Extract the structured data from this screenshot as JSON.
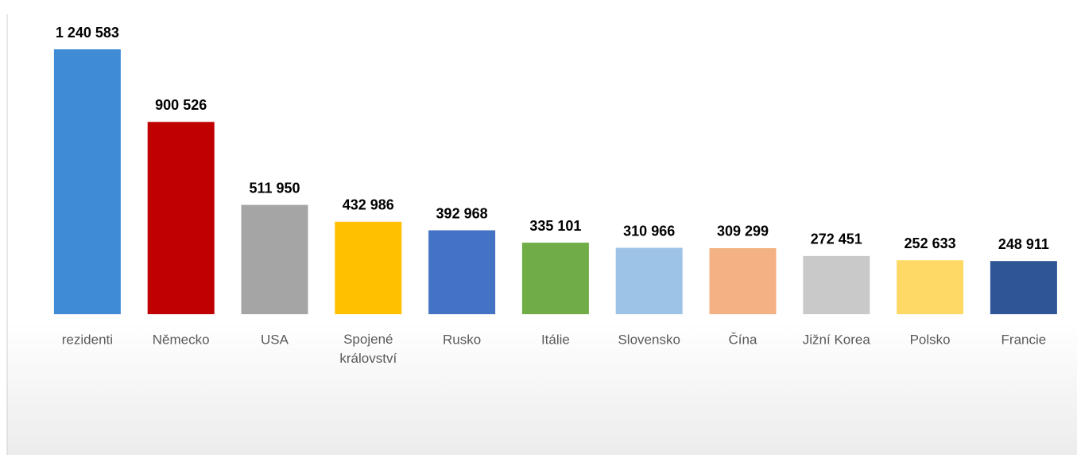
{
  "chart_data": {
    "type": "bar",
    "categories": [
      "rezidenti",
      "Německo",
      "USA",
      "Spojené království",
      "Rusko",
      "Itálie",
      "Slovensko",
      "Čína",
      "Jižní Korea",
      "Polsko",
      "Francie"
    ],
    "values": [
      1240583,
      900526,
      511950,
      432986,
      392968,
      335101,
      310966,
      309299,
      272451,
      252633,
      248911
    ],
    "value_labels": [
      "1 240 583",
      "900 526",
      "511 950",
      "432 986",
      "392 968",
      "335 101",
      "310 966",
      "309 299",
      "272 451",
      "252 633",
      "248 911"
    ],
    "colors": [
      "#3f8bd6",
      "#c00000",
      "#a5a5a5",
      "#ffc000",
      "#4472c4",
      "#70ad47",
      "#9dc3e6",
      "#f4b183",
      "#c9c9c9",
      "#ffd966",
      "#2f5597"
    ]
  }
}
